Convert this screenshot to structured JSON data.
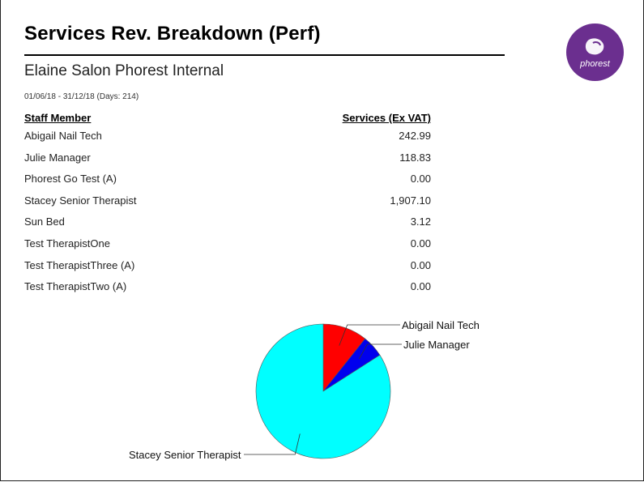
{
  "report": {
    "title": "Services Rev. Breakdown (Perf)",
    "organization": "Elaine Salon Phorest Internal",
    "date_range": "01/06/18 - 31/12/18 (Days: 214)",
    "logo_text": "phorest"
  },
  "table": {
    "headers": [
      "Staff Member",
      "Services (Ex VAT)"
    ],
    "rows": [
      {
        "name": "Abigail Nail Tech",
        "value": "242.99"
      },
      {
        "name": "Julie Manager",
        "value": "118.83"
      },
      {
        "name": "Phorest Go Test (A)",
        "value": "0.00"
      },
      {
        "name": "Stacey Senior Therapist",
        "value": "1,907.10"
      },
      {
        "name": "Sun Bed",
        "value": "3.12"
      },
      {
        "name": "Test TherapistOne",
        "value": "0.00"
      },
      {
        "name": "Test TherapistThree (A)",
        "value": "0.00"
      },
      {
        "name": "Test TherapistTwo (A)",
        "value": "0.00"
      }
    ]
  },
  "colors": {
    "logo_bg": "#6b2f8f",
    "slice_abigail": "#ff0000",
    "slice_julie": "#0000ee",
    "slice_stacey": "#00ffff"
  },
  "chart_data": {
    "type": "pie",
    "start": "top",
    "direction": "clockwise",
    "slices": [
      {
        "label": "Abigail Nail Tech",
        "value": 242.99,
        "color": "#ff0000"
      },
      {
        "label": "Julie Manager",
        "value": 118.83,
        "color": "#0000ee"
      },
      {
        "label": "Stacey Senior Therapist",
        "value": 1907.1,
        "color": "#00ffff"
      }
    ]
  }
}
